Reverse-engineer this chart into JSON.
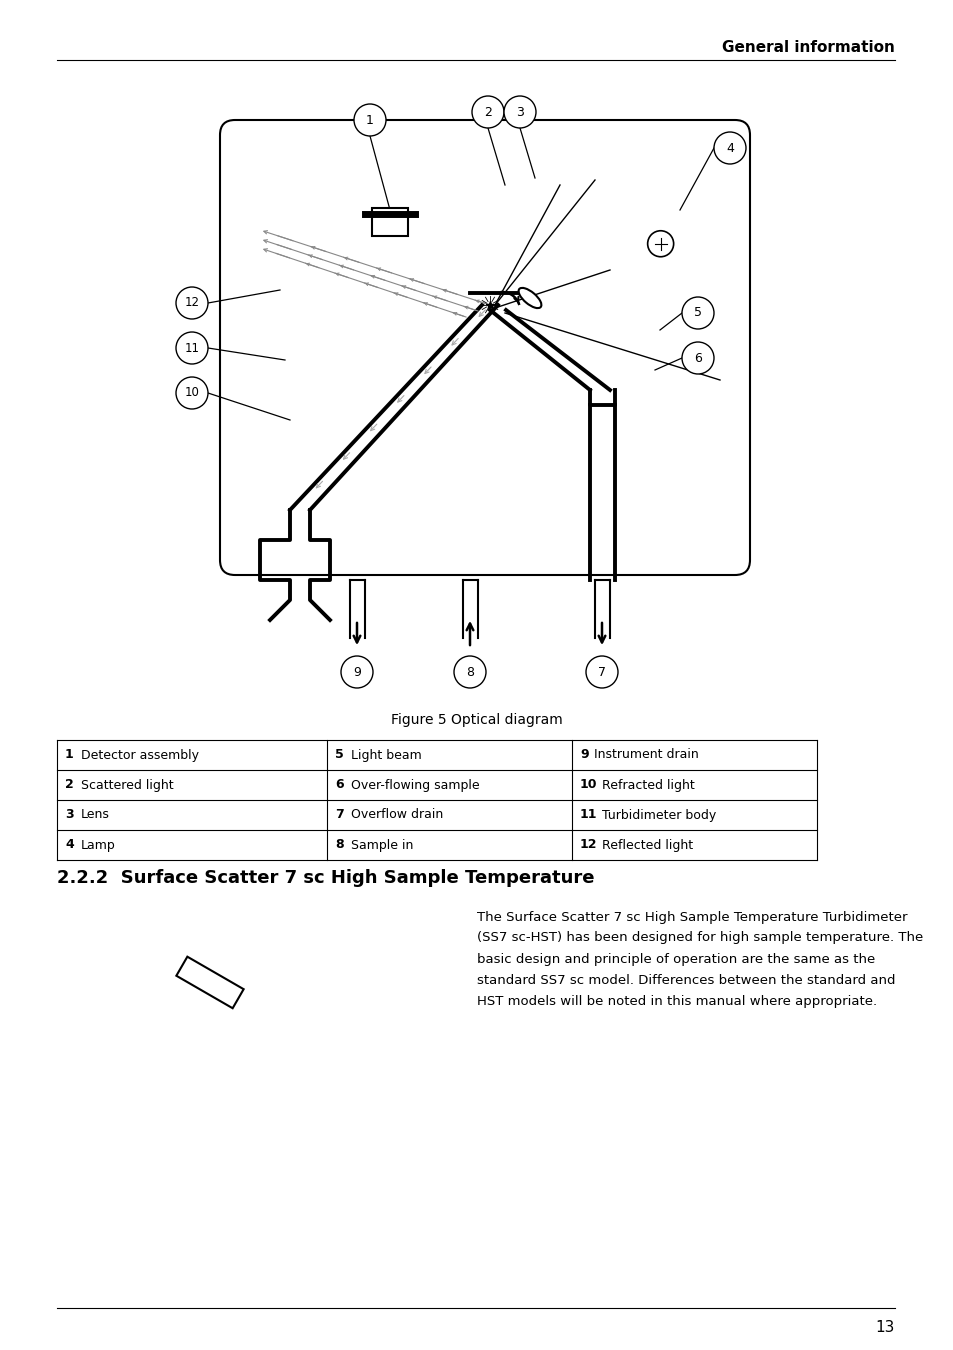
{
  "page_header": "General information",
  "figure_caption": "Figure 5 Optical diagram",
  "section_title": "2.2.2  Surface Scatter 7 sc High Sample Temperature",
  "section_body": "The Surface Scatter 7 sc High Sample Temperature Turbidimeter\n(SS7 sc-HST) has been designed for high sample temperature. The\nbasic design and principle of operation are the same as the\nstandard SS7 sc model. Differences between the standard and\nHST models will be noted in this manual where appropriate.",
  "page_number": "13",
  "table": [
    [
      "1",
      "Detector assembly",
      "5",
      "Light beam",
      "9",
      "Instrument drain"
    ],
    [
      "2",
      "Scattered light",
      "6",
      "Over-flowing sample",
      "10",
      "Refracted light"
    ],
    [
      "3",
      "Lens",
      "7",
      "Overflow drain",
      "11",
      "Turbidimeter body"
    ],
    [
      "4",
      "Lamp",
      "8",
      "Sample in",
      "12",
      "Reflected light"
    ]
  ],
  "bg_color": "#ffffff",
  "text_color": "#000000",
  "line_color": "#000000"
}
